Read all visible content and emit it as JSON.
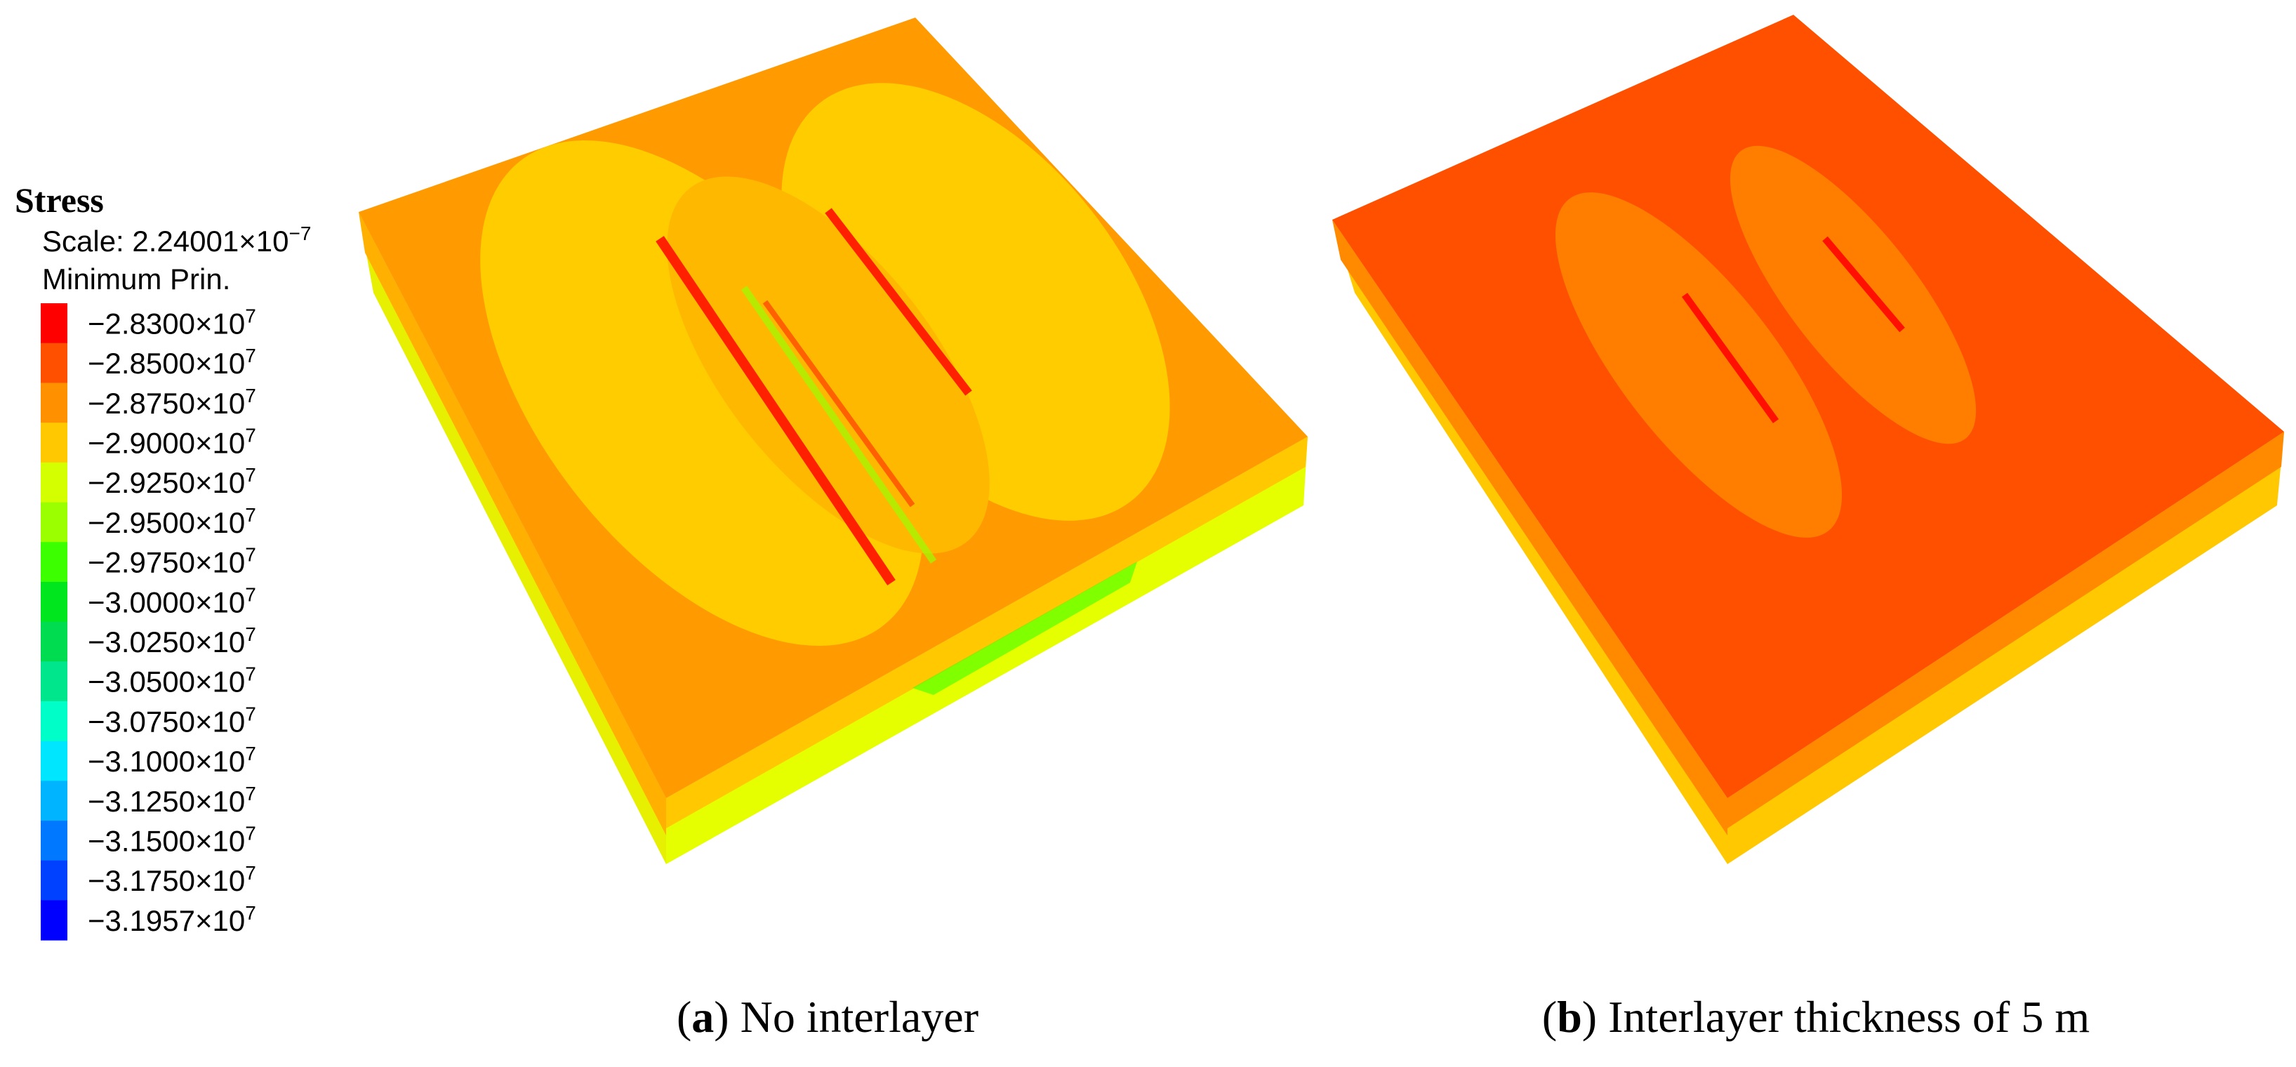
{
  "legend": {
    "title": "Stress",
    "scale": {
      "text": "Scale: 2.24001×10",
      "exponent": "−7"
    },
    "quantity": "Minimum Prin.",
    "entries": [
      {
        "label": "−2.8300×10",
        "exponent": "7",
        "color": "#ff0000"
      },
      {
        "label": "−2.8500×10",
        "exponent": "7",
        "color": "#ff5000"
      },
      {
        "label": "−2.8750×10",
        "exponent": "7",
        "color": "#ff9100"
      },
      {
        "label": "−2.9000×10",
        "exponent": "7",
        "color": "#ffc800"
      },
      {
        "label": "−2.9250×10",
        "exponent": "7",
        "color": "#d4ff00"
      },
      {
        "label": "−2.9500×10",
        "exponent": "7",
        "color": "#9bff00"
      },
      {
        "label": "−2.9750×10",
        "exponent": "7",
        "color": "#3cff00"
      },
      {
        "label": "−3.0000×10",
        "exponent": "7",
        "color": "#00e61e"
      },
      {
        "label": "−3.0250×10",
        "exponent": "7",
        "color": "#00dc50"
      },
      {
        "label": "−3.0500×10",
        "exponent": "7",
        "color": "#00e68c"
      },
      {
        "label": "−3.0750×10",
        "exponent": "7",
        "color": "#00ffc8"
      },
      {
        "label": "−3.1000×10",
        "exponent": "7",
        "color": "#00e6ff"
      },
      {
        "label": "−3.1250×10",
        "exponent": "7",
        "color": "#00b4ff"
      },
      {
        "label": "−3.1500×10",
        "exponent": "7",
        "color": "#0078ff"
      },
      {
        "label": "−3.1750×10",
        "exponent": "7",
        "color": "#0040ff"
      },
      {
        "label": "−3.1957×10",
        "exponent": "7",
        "color": "#0000ff"
      }
    ]
  },
  "panels": [
    {
      "caption_parts": [
        "(",
        "a",
        ") No interlayer"
      ]
    },
    {
      "caption_parts": [
        "(",
        "b",
        ") Interlayer thickness of 5 m"
      ]
    }
  ]
}
